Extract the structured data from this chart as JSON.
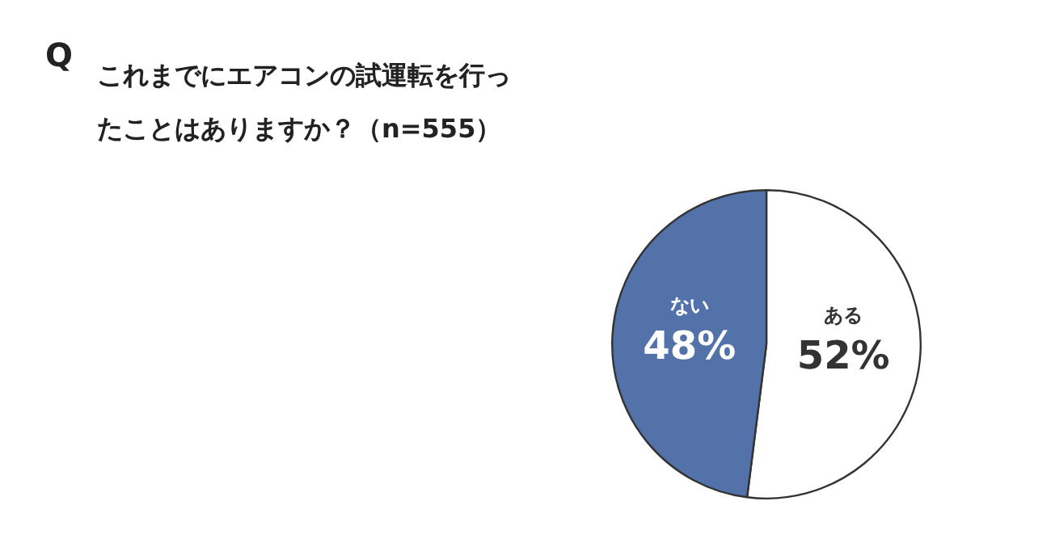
{
  "chart_data": {
    "type": "pie",
    "title": "これまでにエアコンの試運転を行ったことはありますか？（n=555）",
    "annotations": [
      "Q"
    ],
    "categories": [
      "ある",
      "ない"
    ],
    "values": [
      52,
      48
    ],
    "colors": [
      "#ffffff",
      "#5272a9"
    ],
    "value_labels": [
      "52%",
      "48%"
    ],
    "legend": false
  }
}
